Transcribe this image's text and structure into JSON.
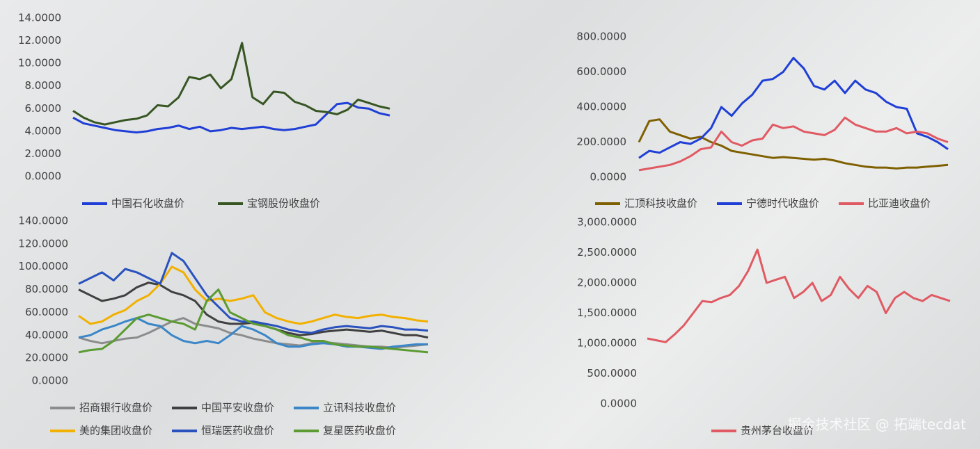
{
  "chart_data": [
    {
      "type": "line",
      "ylim": [
        0,
        14
      ],
      "yticks": [
        {
          "value": 0,
          "label": "0.0000"
        },
        {
          "value": 2,
          "label": "2.0000"
        },
        {
          "value": 4,
          "label": "4.0000"
        },
        {
          "value": 6,
          "label": "6.0000"
        },
        {
          "value": 8,
          "label": "8.0000"
        },
        {
          "value": 10,
          "label": "10.0000"
        },
        {
          "value": 12,
          "label": "12.0000"
        },
        {
          "value": 14,
          "label": "14.0000"
        }
      ],
      "series": [
        {
          "name": "中国石化收盘价",
          "color": "#1f3fd6",
          "values": [
            5.2,
            4.7,
            4.5,
            4.3,
            4.1,
            4.0,
            3.9,
            4.0,
            4.2,
            4.3,
            4.5,
            4.2,
            4.4,
            4.0,
            4.1,
            4.3,
            4.2,
            4.3,
            4.4,
            4.2,
            4.1,
            4.2,
            4.4,
            4.6,
            5.5,
            6.4,
            6.5,
            6.1,
            6.0,
            5.6,
            5.4
          ]
        },
        {
          "name": "宝钢股份收盘价",
          "color": "#375623",
          "values": [
            5.8,
            5.2,
            4.8,
            4.6,
            4.8,
            5.0,
            5.1,
            5.4,
            6.3,
            6.2,
            7.0,
            8.8,
            8.6,
            9.0,
            7.8,
            8.6,
            11.8,
            7.0,
            6.4,
            7.5,
            7.4,
            6.6,
            6.3,
            5.8,
            5.7,
            5.5,
            5.9,
            6.8,
            6.5,
            6.2,
            6.0
          ]
        }
      ]
    },
    {
      "type": "line",
      "ylim": [
        0,
        800
      ],
      "yticks": [
        {
          "value": 0,
          "label": "0.0000"
        },
        {
          "value": 200,
          "label": "200.0000"
        },
        {
          "value": 400,
          "label": "400.0000"
        },
        {
          "value": 600,
          "label": "600.0000"
        },
        {
          "value": 800,
          "label": "800.0000"
        }
      ],
      "series": [
        {
          "name": "汇顶科技收盘价",
          "color": "#7f6000",
          "values": [
            200,
            320,
            330,
            260,
            240,
            220,
            230,
            200,
            180,
            150,
            140,
            130,
            120,
            110,
            115,
            110,
            105,
            100,
            105,
            95,
            80,
            70,
            60,
            55,
            55,
            50,
            55,
            55,
            60,
            65,
            70
          ]
        },
        {
          "name": "宁德时代收盘价",
          "color": "#1f3fd6",
          "values": [
            110,
            150,
            140,
            170,
            200,
            190,
            220,
            280,
            400,
            350,
            420,
            470,
            550,
            560,
            600,
            680,
            620,
            520,
            500,
            550,
            480,
            550,
            500,
            480,
            430,
            400,
            390,
            250,
            230,
            200,
            160
          ]
        },
        {
          "name": "比亚迪收盘价",
          "color": "#e05a63",
          "values": [
            40,
            50,
            60,
            70,
            90,
            120,
            160,
            170,
            260,
            200,
            180,
            210,
            220,
            300,
            280,
            290,
            260,
            250,
            240,
            270,
            340,
            300,
            280,
            260,
            260,
            280,
            250,
            260,
            250,
            220,
            200
          ]
        }
      ]
    },
    {
      "type": "line",
      "ylim": [
        0,
        140
      ],
      "yticks": [
        {
          "value": 0,
          "label": "0.0000"
        },
        {
          "value": 20,
          "label": "20.0000"
        },
        {
          "value": 40,
          "label": "40.0000"
        },
        {
          "value": 60,
          "label": "60.0000"
        },
        {
          "value": 80,
          "label": "80.0000"
        },
        {
          "value": 100,
          "label": "100.0000"
        },
        {
          "value": 120,
          "label": "120.0000"
        },
        {
          "value": 140,
          "label": "140.0000"
        }
      ],
      "series": [
        {
          "name": "招商银行收盘价",
          "color": "#8c8c8c",
          "values": [
            38,
            35,
            33,
            35,
            37,
            38,
            42,
            47,
            52,
            55,
            50,
            48,
            46,
            42,
            40,
            37,
            35,
            33,
            32,
            31,
            33,
            34,
            33,
            32,
            31,
            30,
            30,
            29,
            30,
            31,
            32
          ]
        },
        {
          "name": "中国平安收盘价",
          "color": "#404040",
          "values": [
            80,
            75,
            70,
            72,
            75,
            82,
            86,
            84,
            78,
            75,
            70,
            58,
            52,
            50,
            50,
            51,
            48,
            45,
            42,
            40,
            41,
            43,
            44,
            45,
            44,
            43,
            44,
            42,
            40,
            40,
            38
          ]
        },
        {
          "name": "立讯科技收盘价",
          "color": "#3a86c8",
          "values": [
            38,
            40,
            45,
            48,
            52,
            55,
            50,
            48,
            40,
            35,
            33,
            35,
            33,
            40,
            48,
            45,
            40,
            33,
            30,
            30,
            32,
            33,
            32,
            30,
            30,
            29,
            28,
            30,
            31,
            32,
            32
          ]
        },
        {
          "name": "美的集团收盘价",
          "color": "#f2b000",
          "values": [
            57,
            50,
            52,
            58,
            62,
            70,
            75,
            85,
            100,
            95,
            80,
            70,
            72,
            70,
            72,
            75,
            60,
            55,
            52,
            50,
            52,
            55,
            58,
            56,
            55,
            57,
            58,
            56,
            55,
            53,
            52
          ]
        },
        {
          "name": "恒瑞医药收盘价",
          "color": "#2a52be",
          "values": [
            85,
            90,
            95,
            88,
            98,
            95,
            90,
            85,
            112,
            105,
            90,
            75,
            65,
            55,
            52,
            52,
            50,
            48,
            45,
            43,
            42,
            45,
            47,
            48,
            47,
            46,
            48,
            47,
            45,
            45,
            44
          ]
        },
        {
          "name": "复星医药收盘价",
          "color": "#5b9b32",
          "values": [
            25,
            27,
            28,
            35,
            45,
            55,
            58,
            55,
            52,
            50,
            45,
            70,
            80,
            60,
            55,
            50,
            48,
            45,
            40,
            38,
            35,
            35,
            32,
            31,
            30,
            30,
            29,
            28,
            27,
            26,
            25
          ]
        }
      ]
    },
    {
      "type": "line",
      "ylim": [
        0,
        3000
      ],
      "yticks": [
        {
          "value": 0,
          "label": "0.0000"
        },
        {
          "value": 500,
          "label": "500.0000"
        },
        {
          "value": 1000,
          "label": "1,000.0000"
        },
        {
          "value": 1500,
          "label": "1,500.0000"
        },
        {
          "value": 2000,
          "label": "2,000.0000"
        },
        {
          "value": 2500,
          "label": "2,500.0000"
        },
        {
          "value": 3000,
          "label": "3,000.0000"
        }
      ],
      "series": [
        {
          "name": "贵州茅台收盘价",
          "color": "#e05a63",
          "values": [
            1080,
            1050,
            1020,
            1150,
            1300,
            1500,
            1700,
            1680,
            1750,
            1800,
            1950,
            2200,
            2550,
            2000,
            2050,
            2100,
            1750,
            1850,
            2000,
            1700,
            1800,
            2100,
            1900,
            1750,
            1950,
            1850,
            1500,
            1750,
            1850,
            1750,
            1700,
            1800,
            1750,
            1700
          ]
        }
      ]
    }
  ],
  "watermark": "掘金技术社区 @ 拓端tecdat"
}
